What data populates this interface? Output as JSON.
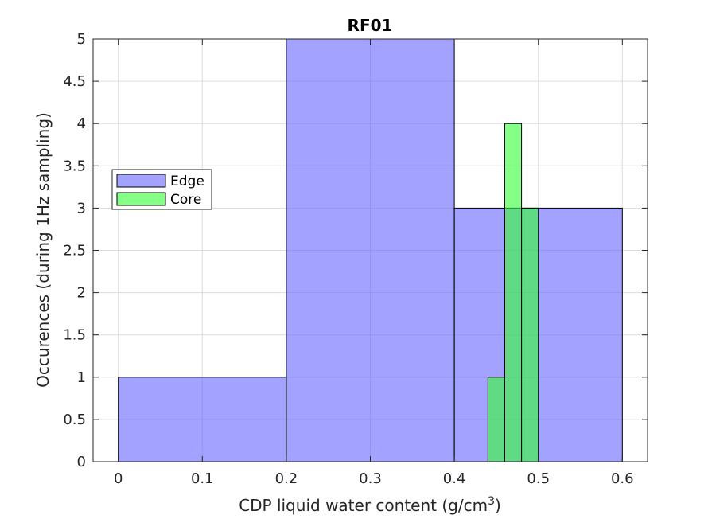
{
  "chart_data": {
    "type": "bar",
    "title": "RF01",
    "xlabel": "CDP liquid water content (g/cm",
    "xlabel_superscript": "3",
    "xlabel_suffix": ")",
    "ylabel": "Occurences (during 1Hz sampling)",
    "xlim": [
      -0.03,
      0.63
    ],
    "ylim": [
      0,
      5
    ],
    "xticks": [
      "0",
      "0.1",
      "0.2",
      "0.3",
      "0.4",
      "0.5",
      "0.6"
    ],
    "yticks": [
      "0",
      "0.5",
      "1",
      "1.5",
      "2",
      "2.5",
      "3",
      "3.5",
      "4",
      "4.5",
      "5"
    ],
    "grid": true,
    "legend_position": "middle-left",
    "series": [
      {
        "name": "Edge",
        "color": "#6666ff",
        "bins": [
          {
            "x0": 0.0,
            "x1": 0.2,
            "value": 1
          },
          {
            "x0": 0.2,
            "x1": 0.4,
            "value": 5
          },
          {
            "x0": 0.4,
            "x1": 0.6,
            "value": 3
          }
        ]
      },
      {
        "name": "Core",
        "color": "#33ff33",
        "bins": [
          {
            "x0": 0.44,
            "x1": 0.46,
            "value": 1
          },
          {
            "x0": 0.46,
            "x1": 0.48,
            "value": 4
          },
          {
            "x0": 0.48,
            "x1": 0.5,
            "value": 3
          }
        ]
      }
    ]
  }
}
